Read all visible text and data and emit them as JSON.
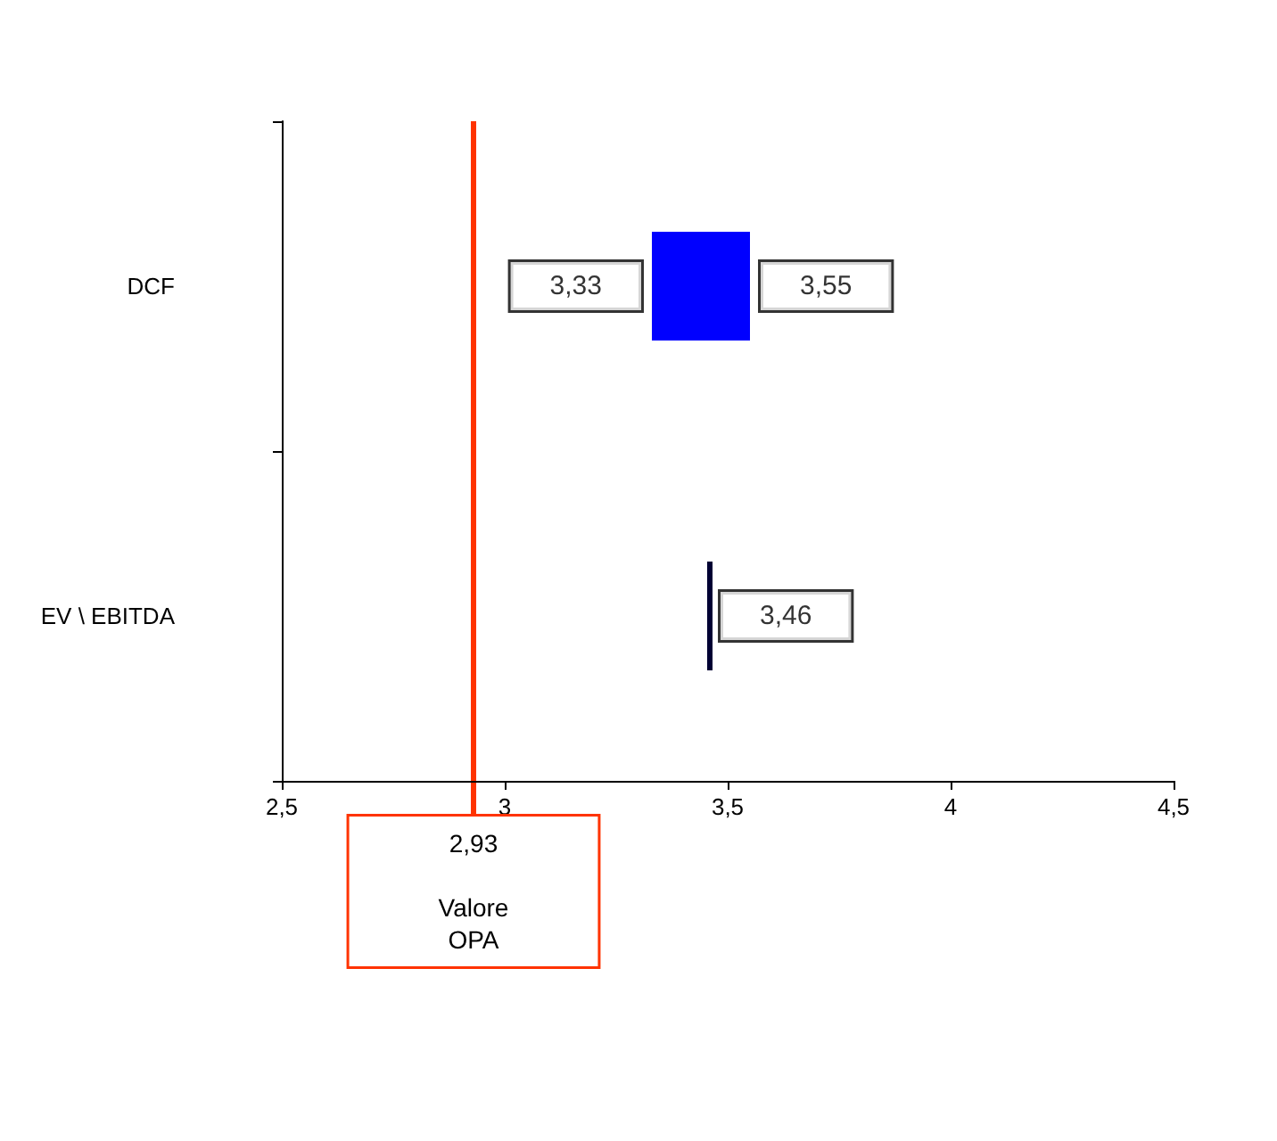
{
  "chart_data": {
    "type": "bar",
    "orientation": "horizontal",
    "categories": [
      "DCF",
      "EV \\ EBITDA"
    ],
    "base": [
      3.33,
      3.46
    ],
    "values": [
      0.22,
      0
    ],
    "colors": [
      "#0000ff",
      "#000033"
    ],
    "xlim": [
      2.5,
      4.5
    ],
    "xticks": [
      {
        "value": 2.5,
        "label": "2,5"
      },
      3,
      {
        "value": 3.5,
        "label": "3,5"
      },
      4,
      {
        "value": 4.5,
        "label": "4,5"
      }
    ],
    "grid": false,
    "ref_lines": [
      {
        "axis": "x",
        "value": 2.93,
        "label": "2,93\n\nValore\nOPA",
        "color": "#ff3300"
      }
    ],
    "annotations": [
      {
        "text": "3,33",
        "x": 3.33,
        "y": "DCF"
      },
      {
        "text": "3,55",
        "x": 3.55,
        "y": "DCF"
      },
      {
        "text": "3,46",
        "x": 3.46,
        "y": "EV \\ EBITDA"
      }
    ]
  }
}
